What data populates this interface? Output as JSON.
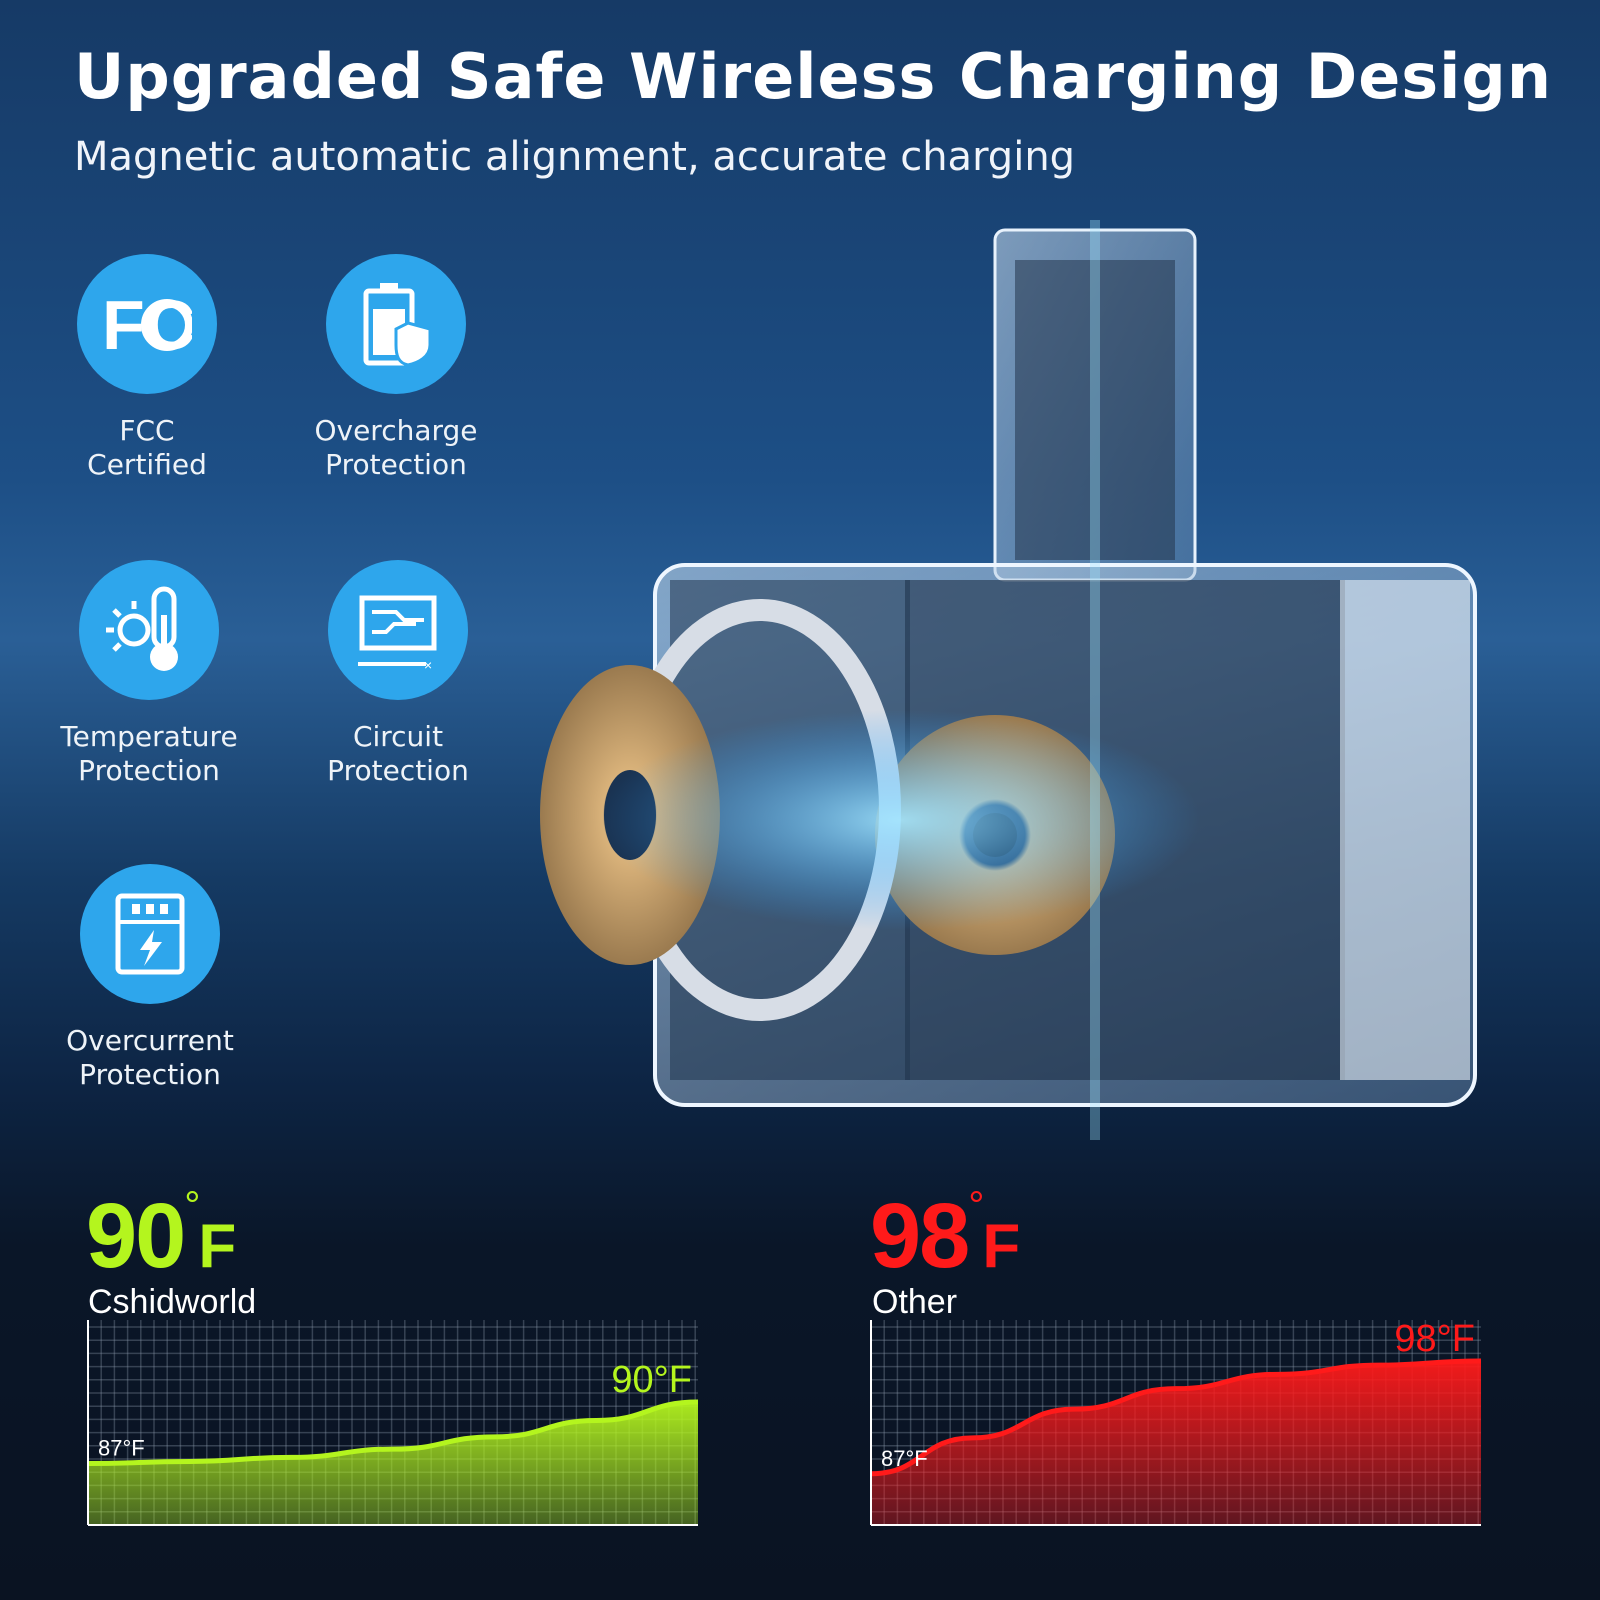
{
  "header": {
    "title": "Upgraded Safe Wireless Charging Design",
    "subtitle": "Magnetic automatic alignment, accurate charging"
  },
  "features": [
    {
      "icon": "fcc-logo-icon",
      "line1": "FCC",
      "line2": "Certified"
    },
    {
      "icon": "battery-shield-icon",
      "line1": "Overcharge",
      "line2": "Protection"
    },
    {
      "icon": "sun-thermometer-icon",
      "line1": "Temperature",
      "line2": "Protection"
    },
    {
      "icon": "circuit-board-icon",
      "line1": "Circuit",
      "line2": "Protection"
    },
    {
      "icon": "power-lightning-icon",
      "line1": "Overcurrent",
      "line2": "Protection"
    }
  ],
  "colors": {
    "accent_blue": "#2ea6ec",
    "good_green": "#b4f51e",
    "bad_red": "#ff1a1a"
  },
  "comparison": {
    "ours": {
      "temp": "90",
      "degree": "°",
      "unit": "F",
      "name": "Cshidworld"
    },
    "other": {
      "temp": "98",
      "degree": "°",
      "unit": "F",
      "name": "Other"
    }
  },
  "chart_data": [
    {
      "type": "area",
      "series_label": "Cshidworld",
      "start_label": "87°F",
      "end_label": "90°F",
      "x": [
        0,
        1,
        2,
        3,
        4,
        5,
        6
      ],
      "values": [
        87,
        87.1,
        87.3,
        87.7,
        88.3,
        89.1,
        90
      ],
      "ylim": [
        84,
        94
      ],
      "grid": true,
      "color": "#b4f51e"
    },
    {
      "type": "area",
      "series_label": "Other",
      "start_label": "87°F",
      "end_label": "98°F",
      "x": [
        0,
        1,
        2,
        3,
        4,
        5,
        6
      ],
      "values": [
        87,
        90.5,
        93.3,
        95.3,
        96.7,
        97.6,
        98
      ],
      "ylim": [
        82,
        102
      ],
      "grid": true,
      "color": "#ff1a1a"
    }
  ]
}
